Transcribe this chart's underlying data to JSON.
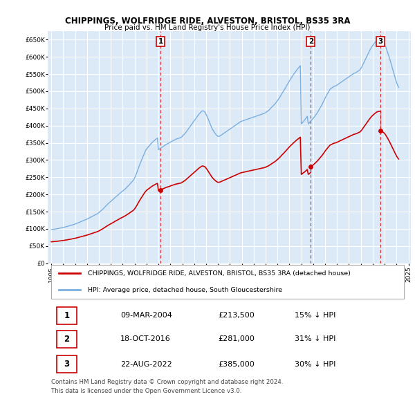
{
  "title": "CHIPPINGS, WOLFRIDGE RIDE, ALVESTON, BRISTOL, BS35 3RA",
  "subtitle": "Price paid vs. HM Land Registry's House Price Index (HPI)",
  "background_color": "#ffffff",
  "plot_bg_color": "#dce9f7",
  "grid_color": "#ffffff",
  "legend_label_red": "CHIPPINGS, WOLFRIDGE RIDE, ALVESTON, BRISTOL, BS35 3RA (detached house)",
  "legend_label_blue": "HPI: Average price, detached house, South Gloucestershire",
  "footnote": "Contains HM Land Registry data © Crown copyright and database right 2024.\nThis data is licensed under the Open Government Licence v3.0.",
  "sale_points": [
    {
      "label": "1",
      "date": "09-MAR-2004",
      "year": 2004.19,
      "price": 213500,
      "pct": "15% ↓ HPI"
    },
    {
      "label": "2",
      "date": "18-OCT-2016",
      "year": 2016.8,
      "price": 281000,
      "pct": "31% ↓ HPI"
    },
    {
      "label": "3",
      "date": "22-AUG-2022",
      "year": 2022.64,
      "price": 385000,
      "pct": "30% ↓ HPI"
    }
  ],
  "hpi_x": [
    1995.0,
    1995.083,
    1995.167,
    1995.25,
    1995.333,
    1995.417,
    1995.5,
    1995.583,
    1995.667,
    1995.75,
    1995.833,
    1995.917,
    1996.0,
    1996.083,
    1996.167,
    1996.25,
    1996.333,
    1996.417,
    1996.5,
    1996.583,
    1996.667,
    1996.75,
    1996.833,
    1996.917,
    1997.0,
    1997.083,
    1997.167,
    1997.25,
    1997.333,
    1997.417,
    1997.5,
    1997.583,
    1997.667,
    1997.75,
    1997.833,
    1997.917,
    1998.0,
    1998.083,
    1998.167,
    1998.25,
    1998.333,
    1998.417,
    1998.5,
    1998.583,
    1998.667,
    1998.75,
    1998.833,
    1998.917,
    1999.0,
    1999.083,
    1999.167,
    1999.25,
    1999.333,
    1999.417,
    1999.5,
    1999.583,
    1999.667,
    1999.75,
    1999.833,
    1999.917,
    2000.0,
    2000.083,
    2000.167,
    2000.25,
    2000.333,
    2000.417,
    2000.5,
    2000.583,
    2000.667,
    2000.75,
    2000.833,
    2000.917,
    2001.0,
    2001.083,
    2001.167,
    2001.25,
    2001.333,
    2001.417,
    2001.5,
    2001.583,
    2001.667,
    2001.75,
    2001.833,
    2001.917,
    2002.0,
    2002.083,
    2002.167,
    2002.25,
    2002.333,
    2002.417,
    2002.5,
    2002.583,
    2002.667,
    2002.75,
    2002.833,
    2002.917,
    2003.0,
    2003.083,
    2003.167,
    2003.25,
    2003.333,
    2003.417,
    2003.5,
    2003.583,
    2003.667,
    2003.75,
    2003.833,
    2003.917,
    2004.0,
    2004.083,
    2004.167,
    2004.25,
    2004.333,
    2004.417,
    2004.5,
    2004.583,
    2004.667,
    2004.75,
    2004.833,
    2004.917,
    2005.0,
    2005.083,
    2005.167,
    2005.25,
    2005.333,
    2005.417,
    2005.5,
    2005.583,
    2005.667,
    2005.75,
    2005.833,
    2005.917,
    2006.0,
    2006.083,
    2006.167,
    2006.25,
    2006.333,
    2006.417,
    2006.5,
    2006.583,
    2006.667,
    2006.75,
    2006.833,
    2006.917,
    2007.0,
    2007.083,
    2007.167,
    2007.25,
    2007.333,
    2007.417,
    2007.5,
    2007.583,
    2007.667,
    2007.75,
    2007.833,
    2007.917,
    2008.0,
    2008.083,
    2008.167,
    2008.25,
    2008.333,
    2008.417,
    2008.5,
    2008.583,
    2008.667,
    2008.75,
    2008.833,
    2008.917,
    2009.0,
    2009.083,
    2009.167,
    2009.25,
    2009.333,
    2009.417,
    2009.5,
    2009.583,
    2009.667,
    2009.75,
    2009.833,
    2009.917,
    2010.0,
    2010.083,
    2010.167,
    2010.25,
    2010.333,
    2010.417,
    2010.5,
    2010.583,
    2010.667,
    2010.75,
    2010.833,
    2010.917,
    2011.0,
    2011.083,
    2011.167,
    2011.25,
    2011.333,
    2011.417,
    2011.5,
    2011.583,
    2011.667,
    2011.75,
    2011.833,
    2011.917,
    2012.0,
    2012.083,
    2012.167,
    2012.25,
    2012.333,
    2012.417,
    2012.5,
    2012.583,
    2012.667,
    2012.75,
    2012.833,
    2012.917,
    2013.0,
    2013.083,
    2013.167,
    2013.25,
    2013.333,
    2013.417,
    2013.5,
    2013.583,
    2013.667,
    2013.75,
    2013.833,
    2013.917,
    2014.0,
    2014.083,
    2014.167,
    2014.25,
    2014.333,
    2014.417,
    2014.5,
    2014.583,
    2014.667,
    2014.75,
    2014.833,
    2014.917,
    2015.0,
    2015.083,
    2015.167,
    2015.25,
    2015.333,
    2015.417,
    2015.5,
    2015.583,
    2015.667,
    2015.75,
    2015.833,
    2015.917,
    2016.0,
    2016.083,
    2016.167,
    2016.25,
    2016.333,
    2016.417,
    2016.5,
    2016.583,
    2016.667,
    2016.75,
    2016.833,
    2016.917,
    2017.0,
    2017.083,
    2017.167,
    2017.25,
    2017.333,
    2017.417,
    2017.5,
    2017.583,
    2017.667,
    2017.75,
    2017.833,
    2017.917,
    2018.0,
    2018.083,
    2018.167,
    2018.25,
    2018.333,
    2018.417,
    2018.5,
    2018.583,
    2018.667,
    2018.75,
    2018.833,
    2018.917,
    2019.0,
    2019.083,
    2019.167,
    2019.25,
    2019.333,
    2019.417,
    2019.5,
    2019.583,
    2019.667,
    2019.75,
    2019.833,
    2019.917,
    2020.0,
    2020.083,
    2020.167,
    2020.25,
    2020.333,
    2020.417,
    2020.5,
    2020.583,
    2020.667,
    2020.75,
    2020.833,
    2020.917,
    2021.0,
    2021.083,
    2021.167,
    2021.25,
    2021.333,
    2021.417,
    2021.5,
    2021.583,
    2021.667,
    2021.75,
    2021.833,
    2021.917,
    2022.0,
    2022.083,
    2022.167,
    2022.25,
    2022.333,
    2022.417,
    2022.5,
    2022.583,
    2022.667,
    2022.75,
    2022.833,
    2022.917,
    2023.0,
    2023.083,
    2023.167,
    2023.25,
    2023.333,
    2023.417,
    2023.5,
    2023.583,
    2023.667,
    2023.75,
    2023.833,
    2023.917,
    2024.0,
    2024.083,
    2024.167
  ],
  "hpi_y": [
    98000,
    98400,
    98900,
    99200,
    99600,
    100100,
    100500,
    101000,
    101600,
    102200,
    102800,
    103400,
    104000,
    104800,
    105500,
    106200,
    107000,
    107900,
    108700,
    109400,
    110200,
    111300,
    112300,
    113000,
    114000,
    115200,
    116400,
    117500,
    118800,
    120000,
    121200,
    122500,
    123700,
    124900,
    126000,
    127200,
    128500,
    130000,
    131500,
    133000,
    134600,
    136000,
    137500,
    139000,
    140600,
    142000,
    143500,
    145000,
    147500,
    150000,
    152500,
    155000,
    157500,
    160500,
    163500,
    166500,
    169500,
    172500,
    175000,
    177500,
    180000,
    182500,
    185000,
    187500,
    190500,
    193000,
    195500,
    198000,
    200500,
    203000,
    205500,
    208000,
    210000,
    212500,
    215000,
    217500,
    220500,
    223500,
    226500,
    229500,
    233000,
    236000,
    239000,
    242500,
    248000,
    255000,
    262000,
    270000,
    278000,
    286000,
    293000,
    300000,
    307000,
    314000,
    321000,
    327000,
    332000,
    336000,
    339000,
    342000,
    346000,
    349000,
    352000,
    355000,
    357000,
    360000,
    362000,
    364000,
    330000,
    332000,
    334000,
    336000,
    338000,
    340000,
    342000,
    344000,
    346000,
    347000,
    349000,
    350000,
    352000,
    354000,
    355000,
    357000,
    358000,
    360000,
    361000,
    362000,
    363000,
    364000,
    365000,
    366000,
    369000,
    372000,
    375000,
    378000,
    382000,
    386000,
    390000,
    394000,
    398000,
    402000,
    406000,
    410000,
    414000,
    418000,
    422000,
    426000,
    430000,
    434000,
    437000,
    440000,
    443000,
    443000,
    441000,
    439000,
    433000,
    427000,
    420000,
    413000,
    406000,
    399000,
    392000,
    387000,
    382000,
    378000,
    374000,
    371000,
    369000,
    369000,
    370000,
    372000,
    374000,
    376000,
    378000,
    380000,
    382000,
    384000,
    386000,
    388000,
    390000,
    392000,
    394000,
    396000,
    398000,
    400000,
    402000,
    404000,
    406000,
    408000,
    410000,
    412000,
    413000,
    414000,
    415000,
    416000,
    417000,
    418000,
    419000,
    420000,
    421000,
    422000,
    423000,
    424000,
    425000,
    426000,
    427000,
    428000,
    429000,
    430000,
    431000,
    432000,
    433000,
    434000,
    435000,
    436000,
    438000,
    440000,
    442000,
    444000,
    447000,
    450000,
    453000,
    456000,
    459000,
    462000,
    465000,
    469000,
    473000,
    477000,
    481000,
    486000,
    491000,
    496000,
    500000,
    505000,
    510000,
    515000,
    520000,
    525000,
    530000,
    535000,
    539000,
    543000,
    548000,
    552000,
    556000,
    560000,
    564000,
    567000,
    571000,
    574000,
    405000,
    408000,
    412000,
    415000,
    419000,
    423000,
    427000,
    405000,
    408000,
    412000,
    415000,
    418000,
    421000,
    425000,
    429000,
    433000,
    437000,
    442000,
    447000,
    452000,
    457000,
    462000,
    468000,
    474000,
    480000,
    486000,
    491000,
    496000,
    501000,
    506000,
    508000,
    510000,
    512000,
    514000,
    515000,
    516000,
    518000,
    520000,
    522000,
    524000,
    526000,
    528000,
    530000,
    532000,
    534000,
    536000,
    538000,
    540000,
    542000,
    544000,
    546000,
    548000,
    550000,
    552000,
    553000,
    554000,
    556000,
    558000,
    560000,
    562000,
    566000,
    571000,
    577000,
    583000,
    589000,
    595000,
    601000,
    607000,
    613000,
    619000,
    624000,
    629000,
    633000,
    637000,
    641000,
    644000,
    647000,
    649000,
    650000,
    650000,
    649000,
    647000,
    644000,
    641000,
    636000,
    629000,
    621000,
    613000,
    604000,
    595000,
    585000,
    575000,
    565000,
    555000,
    545000,
    535000,
    526000,
    518000,
    511000
  ],
  "ylim": [
    0,
    675000
  ],
  "xlim": [
    1994.7,
    2025.2
  ],
  "yticks": [
    0,
    50000,
    100000,
    150000,
    200000,
    250000,
    300000,
    350000,
    400000,
    450000,
    500000,
    550000,
    600000,
    650000
  ],
  "xticks": [
    1995,
    1996,
    1997,
    1998,
    1999,
    2000,
    2001,
    2002,
    2003,
    2004,
    2005,
    2006,
    2007,
    2008,
    2009,
    2010,
    2011,
    2012,
    2013,
    2014,
    2015,
    2016,
    2017,
    2018,
    2019,
    2020,
    2021,
    2022,
    2023,
    2024,
    2025
  ],
  "red_color": "#cc0000",
  "blue_color": "#7aafe0",
  "dashed_color": "#cc0000",
  "table_rows": [
    [
      "1",
      "09-MAR-2004",
      "£213,500",
      "15% ↓ HPI"
    ],
    [
      "2",
      "18-OCT-2016",
      "£281,000",
      "31% ↓ HPI"
    ],
    [
      "3",
      "22-AUG-2022",
      "£385,000",
      "30% ↓ HPI"
    ]
  ]
}
